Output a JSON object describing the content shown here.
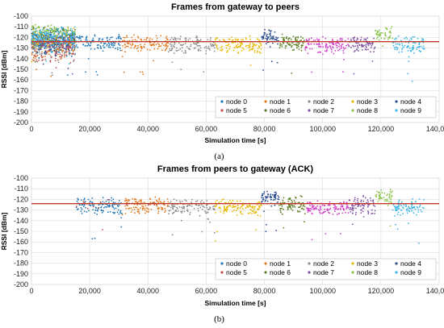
{
  "chart_data": [
    {
      "type": "scatter",
      "title": "Frames from gateway to peers",
      "xlabel": "Simulation time [s]",
      "ylabel": "RSSI [dBm]",
      "xlim": [
        0,
        140000
      ],
      "ylim": [
        -200,
        -100
      ],
      "xticks": [
        0,
        20000,
        40000,
        60000,
        80000,
        100000,
        120000,
        140000
      ],
      "xtick_labels": [
        "0",
        "20,000",
        "40,000",
        "60,000",
        "80,000",
        "100,000",
        "120,000",
        "140,000"
      ],
      "yticks": [
        -200,
        -190,
        -180,
        -170,
        -160,
        -150,
        -140,
        -130,
        -120,
        -110,
        -100
      ],
      "ytick_labels": [
        "-200",
        "-190",
        "-180",
        "-170",
        "-160",
        "-150",
        "-140",
        "-130",
        "-120",
        "-110",
        "-100"
      ],
      "grid": true,
      "legend_position": "bottom-right",
      "caption": "(a)",
      "threshold_line": {
        "y": -124,
        "color": "#c0392b"
      },
      "series": [
        {
          "name": "node 0",
          "color": "#1f77b4",
          "x_range": [
            0,
            15000
          ],
          "y_center": -124,
          "y_spread": 14,
          "count": 260
        },
        {
          "name": "node 1",
          "color": "#e07b20",
          "x_range": [
            0,
            15000
          ],
          "y_center": -128,
          "y_spread": 14,
          "count": 120
        },
        {
          "name": "node 2",
          "color": "#8c8c8c",
          "x_range": [
            0,
            15000
          ],
          "y_center": -126,
          "y_spread": 12,
          "count": 100
        },
        {
          "name": "node 3",
          "color": "#e6b800",
          "x_range": [
            0,
            15000
          ],
          "y_center": -122,
          "y_spread": 12,
          "count": 80
        },
        {
          "name": "node 4",
          "color": "#2a4d8f",
          "x_range": [
            0,
            15000
          ],
          "y_center": -128,
          "y_spread": 12,
          "count": 70
        },
        {
          "name": "node 5",
          "color": "#c0504d",
          "x_range": [
            0,
            15000
          ],
          "y_center": -132,
          "y_spread": 14,
          "count": 60
        },
        {
          "name": "node 6",
          "color": "#5b7d1f",
          "x_range": [
            0,
            15000
          ],
          "y_center": -118,
          "y_spread": 10,
          "count": 70
        },
        {
          "name": "node 7",
          "color": "#7f4fa0",
          "x_range": [
            0,
            15000
          ],
          "y_center": -126,
          "y_spread": 12,
          "count": 60
        },
        {
          "name": "node 8",
          "color": "#8bc34a",
          "x_range": [
            0,
            15000
          ],
          "y_center": -114,
          "y_spread": 6,
          "count": 70
        },
        {
          "name": "node 9",
          "color": "#3fb6e6",
          "x_range": [
            0,
            15000
          ],
          "y_center": -120,
          "y_spread": 10,
          "count": 160
        },
        {
          "name": "",
          "color": "#1f77b4",
          "x_range": [
            15000,
            31000
          ],
          "y_center": -125,
          "y_spread": 9,
          "count": 120
        },
        {
          "name": "",
          "color": "#e07b20",
          "x_range": [
            31000,
            47000
          ],
          "y_center": -126,
          "y_spread": 9,
          "count": 120
        },
        {
          "name": "",
          "color": "#8c8c8c",
          "x_range": [
            47000,
            63000
          ],
          "y_center": -127,
          "y_spread": 9,
          "count": 120
        },
        {
          "name": "",
          "color": "#e6b800",
          "x_range": [
            63000,
            79000
          ],
          "y_center": -127,
          "y_spread": 9,
          "count": 120
        },
        {
          "name": "",
          "color": "#2a4d8f",
          "x_range": [
            79000,
            85000
          ],
          "y_center": -120,
          "y_spread": 9,
          "count": 60
        },
        {
          "name": "",
          "color": "#5b7d1f",
          "x_range": [
            85000,
            94000
          ],
          "y_center": -125,
          "y_spread": 10,
          "count": 80
        },
        {
          "name": "",
          "color": "#d040c8",
          "x_range": [
            94000,
            109000
          ],
          "y_center": -128,
          "y_spread": 9,
          "count": 120
        },
        {
          "name": "",
          "color": "#7f4fa0",
          "x_range": [
            109000,
            118000
          ],
          "y_center": -126,
          "y_spread": 10,
          "count": 80
        },
        {
          "name": "",
          "color": "#8bc34a",
          "x_range": [
            118000,
            124000
          ],
          "y_center": -117,
          "y_spread": 8,
          "count": 50
        },
        {
          "name": "",
          "color": "#3fb6e6",
          "x_range": [
            124000,
            135000
          ],
          "y_center": -127,
          "y_spread": 9,
          "count": 90
        }
      ]
    },
    {
      "type": "scatter",
      "title": "Frames from peers to gateway (ACK)",
      "xlabel": "Simulation time [s]",
      "ylabel": "RSSI [dBm]",
      "xlim": [
        0,
        140000
      ],
      "ylim": [
        -200,
        -100
      ],
      "xticks": [
        0,
        20000,
        40000,
        60000,
        80000,
        100000,
        120000,
        140000
      ],
      "xtick_labels": [
        "0",
        "20,000",
        "40,000",
        "60,000",
        "80,000",
        "100,000",
        "120,000",
        "140,000"
      ],
      "yticks": [
        -200,
        -190,
        -180,
        -170,
        -160,
        -150,
        -140,
        -130,
        -120,
        -110,
        -100
      ],
      "ytick_labels": [
        "-200",
        "-190",
        "-180",
        "-170",
        "-160",
        "-150",
        "-140",
        "-130",
        "-120",
        "-110",
        "-100"
      ],
      "grid": true,
      "legend_position": "bottom-right",
      "caption": "(b)",
      "threshold_line": {
        "y": -124,
        "color": "#c0392b"
      },
      "series": [
        {
          "name": "node 0",
          "color": "#1f77b4",
          "x_range": [
            15000,
            31000
          ],
          "y_center": -126,
          "y_spread": 9,
          "count": 120
        },
        {
          "name": "node 1",
          "color": "#e07b20",
          "x_range": [
            31000,
            47000
          ],
          "y_center": -126,
          "y_spread": 9,
          "count": 120
        },
        {
          "name": "node 2",
          "color": "#8c8c8c",
          "x_range": [
            47000,
            63000
          ],
          "y_center": -127,
          "y_spread": 9,
          "count": 120
        },
        {
          "name": "node 3",
          "color": "#e6b800",
          "x_range": [
            63000,
            79000
          ],
          "y_center": -127,
          "y_spread": 9,
          "count": 120
        },
        {
          "name": "node 4",
          "color": "#2a4d8f",
          "x_range": [
            79000,
            85000
          ],
          "y_center": -120,
          "y_spread": 9,
          "count": 60
        },
        {
          "name": "node 5",
          "color": "#c0504d",
          "x_range": [
            15000,
            47000
          ],
          "y_center": -124,
          "y_spread": 6,
          "count": 20
        },
        {
          "name": "node 6",
          "color": "#5b7d1f",
          "x_range": [
            85000,
            94000
          ],
          "y_center": -125,
          "y_spread": 10,
          "count": 80
        },
        {
          "name": "node 7",
          "color": "#7f4fa0",
          "x_range": [
            109000,
            118000
          ],
          "y_center": -126,
          "y_spread": 10,
          "count": 80
        },
        {
          "name": "node 8",
          "color": "#8bc34a",
          "x_range": [
            118000,
            124000
          ],
          "y_center": -117,
          "y_spread": 8,
          "count": 50
        },
        {
          "name": "node 9",
          "color": "#3fb6e6",
          "x_range": [
            124000,
            135000
          ],
          "y_center": -128,
          "y_spread": 9,
          "count": 90
        },
        {
          "name": "",
          "color": "#d040c8",
          "x_range": [
            94000,
            109000
          ],
          "y_center": -128,
          "y_spread": 9,
          "count": 120
        }
      ]
    }
  ]
}
